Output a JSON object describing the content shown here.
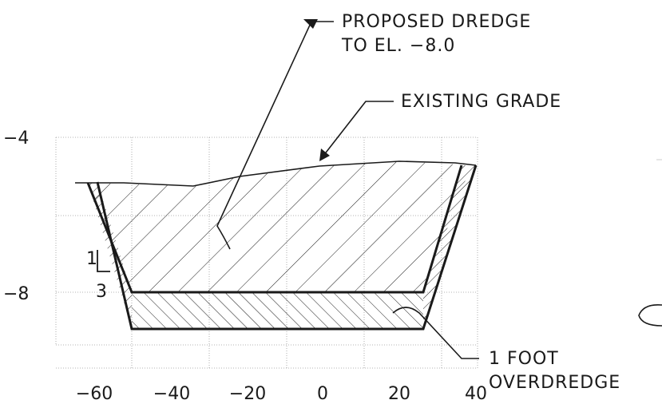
{
  "labels": {
    "proposed_line1": "PROPOSED DREDGE",
    "proposed_line2": "TO EL. −8.0",
    "existing_grade": "EXISTING GRADE",
    "overdredge_line1": "1 FOOT",
    "overdredge_line2": "OVERDREDGE",
    "slope_rise": "1",
    "slope_run": "3"
  },
  "axes": {
    "y_ticks": [
      {
        "label": "−4"
      },
      {
        "label": "−8"
      }
    ],
    "x_ticks": [
      {
        "label": "−60"
      },
      {
        "label": "−40"
      },
      {
        "label": "−20"
      },
      {
        "label": "0"
      },
      {
        "label": "20"
      },
      {
        "label": "40"
      }
    ]
  },
  "colors": {
    "ink": "#1a1a1a",
    "grid": "#9a9a9a",
    "background": "#ffffff"
  }
}
